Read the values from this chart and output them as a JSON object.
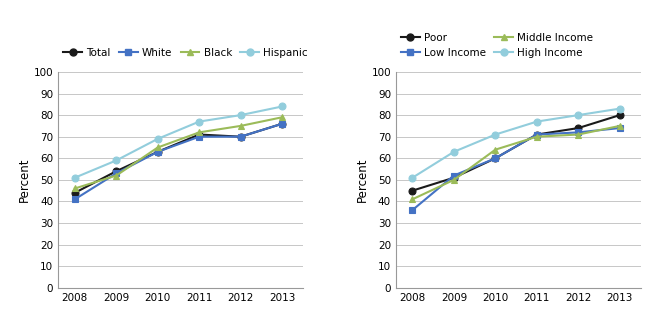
{
  "years": [
    2008,
    2009,
    2010,
    2011,
    2012,
    2013
  ],
  "chart1": {
    "Total": [
      44,
      54,
      63,
      71,
      70,
      76
    ],
    "White": [
      41,
      53,
      63,
      70,
      70,
      76
    ],
    "Black": [
      46,
      52,
      65,
      72,
      75,
      79
    ],
    "Hispanic": [
      51,
      59,
      69,
      77,
      80,
      84
    ]
  },
  "chart1_colors": {
    "Total": "#1a1a1a",
    "White": "#4472c4",
    "Black": "#9bbb59",
    "Hispanic": "#92cddc"
  },
  "chart1_markers": {
    "Total": "o",
    "White": "s",
    "Black": "^",
    "Hispanic": "o"
  },
  "chart2": {
    "Poor": [
      45,
      51,
      60,
      71,
      74,
      80
    ],
    "Low Income": [
      36,
      52,
      60,
      71,
      72,
      74
    ],
    "Middle Income": [
      41,
      50,
      64,
      70,
      71,
      75
    ],
    "High Income": [
      51,
      63,
      71,
      77,
      80,
      83
    ]
  },
  "chart2_colors": {
    "Poor": "#1a1a1a",
    "Low Income": "#4472c4",
    "Middle Income": "#9bbb59",
    "High Income": "#92cddc"
  },
  "chart2_markers": {
    "Poor": "o",
    "Low Income": "s",
    "Middle Income": "^",
    "High Income": "o"
  },
  "chart2_legend_order": [
    "Poor",
    "Low Income",
    "Middle Income",
    "High Income"
  ],
  "ylabel": "Percent",
  "ylim": [
    0,
    100
  ],
  "yticks": [
    0,
    10,
    20,
    30,
    40,
    50,
    60,
    70,
    80,
    90,
    100
  ],
  "background_color": "#ffffff",
  "grid_color": "#bebebe"
}
